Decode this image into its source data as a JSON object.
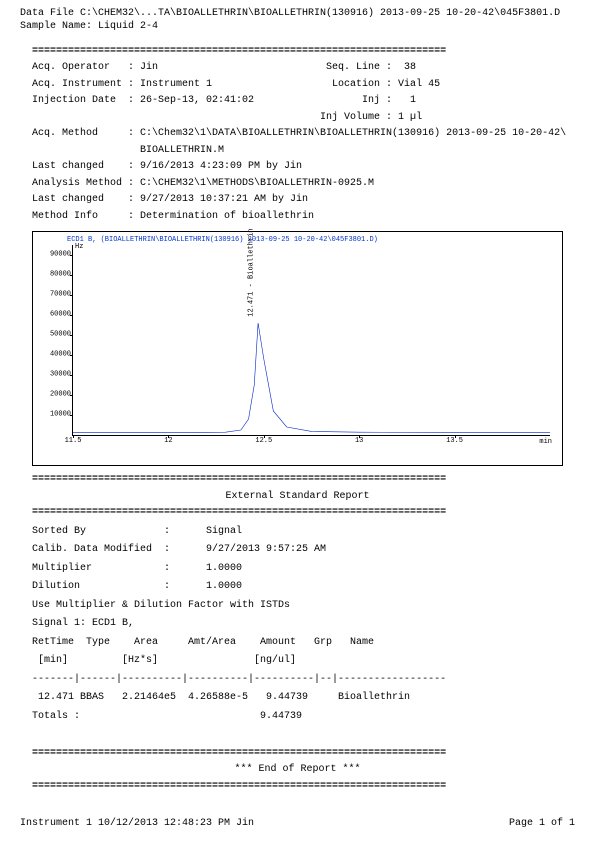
{
  "header": {
    "data_file": "Data File C:\\CHEM32\\...TA\\BIOALLETHRIN\\BIOALLETHRIN(130916) 2013-09-25 10-20-42\\045F3801.D",
    "sample_name": "Sample Name: Liquid 2-4"
  },
  "meta": {
    "line1": "Acq. Operator   : Jin                            Seq. Line :  38",
    "line2": "Acq. Instrument : Instrument 1                    Location : Vial 45",
    "line3": "Injection Date  : 26-Sep-13, 02:41:02                  Inj :   1",
    "line4": "                                                Inj Volume : 1 µl",
    "line5": "Acq. Method     : C:\\Chem32\\1\\DATA\\BIOALLETHRIN\\BIOALLETHRIN(130916) 2013-09-25 10-20-42\\",
    "line5b": "                  BIOALLETHRIN.M",
    "line6": "Last changed    : 9/16/2013 4:23:09 PM by Jin",
    "line7": "Analysis Method : C:\\CHEM32\\1\\METHODS\\BIOALLETHRIN-0925.M",
    "line8": "Last changed    : 9/27/2013 10:37:21 AM by Jin",
    "line9": "Method Info     : Determination of bioallethrin"
  },
  "dash": "=====================================================================",
  "dashline": "---------------------------------------------------------------------",
  "chart": {
    "title": "ECD1 B, (BIOALLETHRIN\\BIOALLETHRIN(130916) 2013-09-25 10-20-42\\045F3801.D)",
    "y_unit": "Hz",
    "x_unit": "min",
    "ylim": [
      0,
      95000
    ],
    "xlim": [
      11.5,
      14.0
    ],
    "yticks": [
      10000,
      20000,
      30000,
      40000,
      50000,
      60000,
      70000,
      80000,
      90000
    ],
    "xticks": [
      11.5,
      12,
      12.5,
      13,
      13.5
    ],
    "trace_color": "#0022cc",
    "peak_label": "12.471 - Bioallethrin",
    "peak_x": 12.47,
    "points": [
      [
        11.5,
        1200
      ],
      [
        12.0,
        1200
      ],
      [
        12.3,
        1400
      ],
      [
        12.38,
        2500
      ],
      [
        12.42,
        8000
      ],
      [
        12.45,
        25000
      ],
      [
        12.47,
        56000
      ],
      [
        12.5,
        38000
      ],
      [
        12.55,
        12000
      ],
      [
        12.62,
        4000
      ],
      [
        12.75,
        1800
      ],
      [
        13.0,
        1400
      ],
      [
        13.5,
        1300
      ],
      [
        14.0,
        1300
      ]
    ]
  },
  "report": {
    "title": "External Standard Report",
    "body1": "Sorted By             :      Signal",
    "body2": "Calib. Data Modified  :      9/27/2013 9:57:25 AM",
    "body3": "Multiplier            :      1.0000",
    "body4": "Dilution              :      1.0000",
    "body5": "Use Multiplier & Dilution Factor with ISTDs",
    "body6": "",
    "body7": "Signal 1: ECD1 B,",
    "body8": "",
    "body9": "RetTime  Type    Area     Amt/Area    Amount   Grp   Name",
    "body10": " [min]         [Hz*s]                [ng/ul]",
    "body11": "-------|------|----------|----------|----------|--|------------------",
    "body12": " 12.471 BBAS   2.21464e5  4.26588e-5   9.44739     Bioallethrin",
    "body13": "",
    "body14": "Totals :                              9.44739"
  },
  "end": "*** End of Report ***",
  "footer": {
    "left": "Instrument 1 10/12/2013 12:48:23 PM Jin",
    "right": "Page   1 of 1"
  }
}
